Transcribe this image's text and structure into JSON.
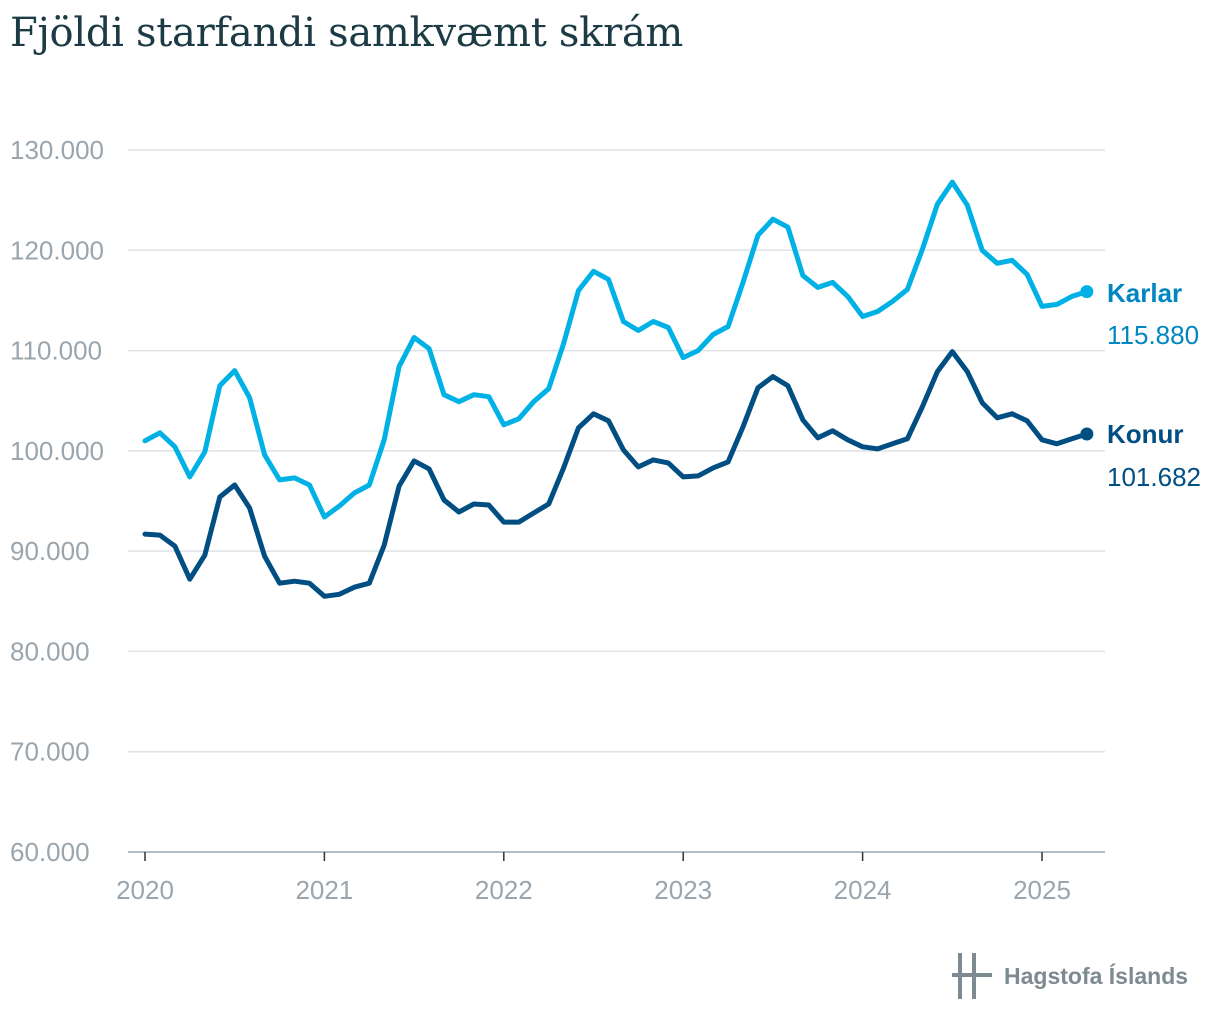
{
  "title": "Fjöldi starfandi samkvæmt skrám",
  "logo": {
    "text": "Hagstofa Íslands",
    "icon": "hagstofa-logo-icon"
  },
  "colors": {
    "karlar": "#00b1e6",
    "konur": "#004e82",
    "karlar_label": "#0086c0",
    "konur_label": "#004e82",
    "grid": "#dde2e6",
    "axis": "#9aa5ad"
  },
  "chart_data": {
    "type": "line",
    "title": "Fjöldi starfandi samkvæmt skrám",
    "xlabel": "",
    "ylabel": "",
    "ylim": [
      60000,
      130000
    ],
    "yticks": [
      60000,
      70000,
      80000,
      90000,
      100000,
      110000,
      120000,
      130000
    ],
    "ytick_labels": [
      "60.000",
      "70.000",
      "80.000",
      "90.000",
      "100.000",
      "110.000",
      "120.000",
      "130.000"
    ],
    "xticks": [
      "2020",
      "2021",
      "2022",
      "2023",
      "2024",
      "2025"
    ],
    "x_start": "2020-01",
    "grid": true,
    "legend": "direct labels at line ends (right)",
    "series": [
      {
        "name": "Karlar",
        "end_label": "115.880",
        "values": [
          101000,
          101800,
          100400,
          97400,
          99900,
          106500,
          108000,
          105300,
          99600,
          97100,
          97300,
          96600,
          93400,
          94500,
          95800,
          96600,
          101100,
          108400,
          111300,
          110200,
          105600,
          104900,
          105600,
          105400,
          102600,
          103200,
          104900,
          106200,
          110700,
          116000,
          117900,
          117100,
          112900,
          112000,
          112900,
          112300,
          109300,
          110000,
          111600,
          112400,
          116800,
          121500,
          123100,
          122300,
          117500,
          116300,
          116800,
          115400,
          113400,
          113900,
          114900,
          116100,
          120100,
          124600,
          126800,
          124500,
          120000,
          118700,
          119000,
          117600,
          114400,
          114600,
          115400,
          115880
        ]
      },
      {
        "name": "Konur",
        "end_label": "101.682",
        "values": [
          91700,
          91600,
          90500,
          87200,
          89600,
          95400,
          96600,
          94300,
          89500,
          86800,
          87000,
          86800,
          85500,
          85700,
          86400,
          86800,
          90600,
          96500,
          99000,
          98200,
          95100,
          93900,
          94700,
          94600,
          92900,
          92900,
          93800,
          94700,
          98300,
          102300,
          103700,
          103000,
          100100,
          98400,
          99100,
          98800,
          97400,
          97500,
          98300,
          98900,
          102400,
          106300,
          107400,
          106500,
          103100,
          101300,
          102000,
          101100,
          100400,
          100200,
          100700,
          101200,
          104400,
          107900,
          109900,
          107900,
          104800,
          103300,
          103700,
          103000,
          101100,
          100700,
          101200,
          101682
        ]
      }
    ]
  }
}
